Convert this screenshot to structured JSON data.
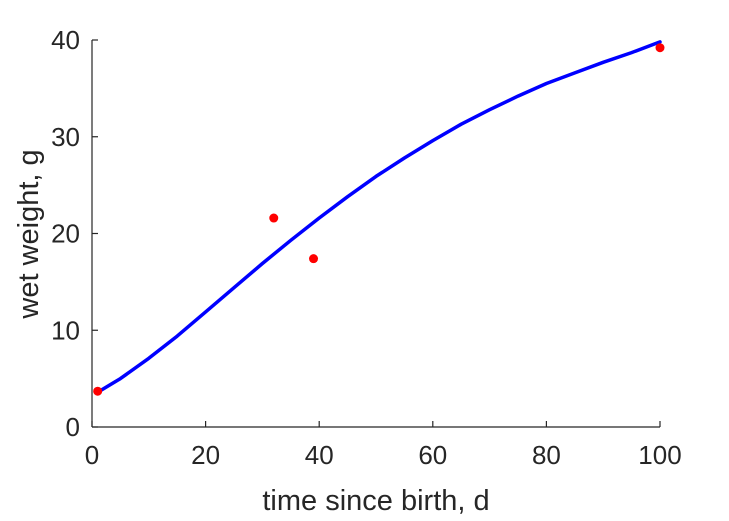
{
  "chart_data": {
    "type": "scatter",
    "title": "",
    "xlabel": "time since birth, d",
    "ylabel": "wet weight, g",
    "xlim": [
      0,
      100
    ],
    "ylim": [
      0,
      40
    ],
    "xticks": [
      0,
      20,
      40,
      60,
      80,
      100
    ],
    "yticks": [
      0,
      10,
      20,
      30,
      40
    ],
    "xtick_labels": [
      "0",
      "20",
      "40",
      "60",
      "80",
      "100"
    ],
    "ytick_labels": [
      "0",
      "10",
      "20",
      "30",
      "40"
    ],
    "grid": false,
    "legend": "none",
    "series": [
      {
        "type": "scatter",
        "color": "#ff0000",
        "x": [
          1,
          32,
          39,
          100
        ],
        "y": [
          3.7,
          21.6,
          17.4,
          39.2
        ]
      },
      {
        "type": "line",
        "color": "#0000ff",
        "x": [
          1,
          5,
          10,
          15,
          20,
          25,
          30,
          35,
          40,
          45,
          50,
          55,
          60,
          65,
          70,
          75,
          80,
          85,
          90,
          95,
          100
        ],
        "y": [
          3.6,
          5.0,
          7.1,
          9.4,
          11.9,
          14.4,
          16.9,
          19.3,
          21.6,
          23.8,
          25.9,
          27.8,
          29.6,
          31.3,
          32.8,
          34.2,
          35.5,
          36.6,
          37.7,
          38.7,
          39.8
        ]
      }
    ]
  }
}
